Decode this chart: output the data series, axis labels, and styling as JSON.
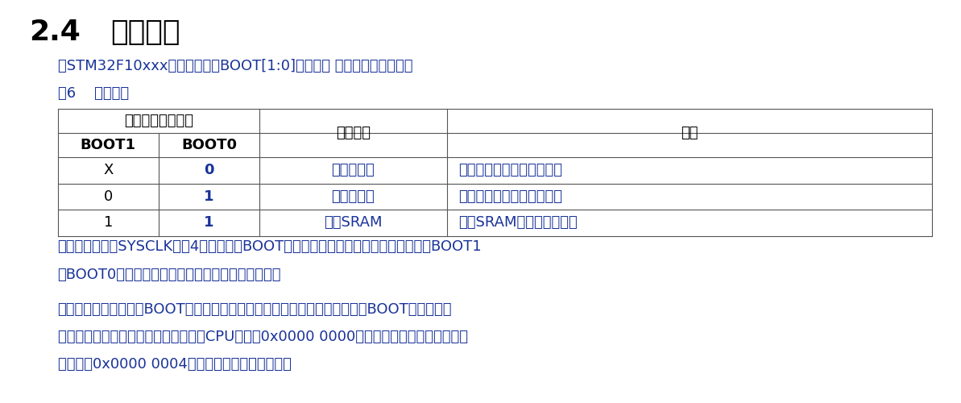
{
  "bg_color": "#ffffff",
  "title_number": "2.4",
  "title_text": "启动配置",
  "title_color": "#000000",
  "title_fontsize": 26,
  "subtitle_color": "#1a3399",
  "subtitle_text": "在STM32F10xxx里，可以通过BOOT[1:0]引脚选择 三种不同启动模式。",
  "table_label": "表6    启动模式",
  "table_label_color": "#1a3399",
  "table_border_color": "#555555",
  "table_header_text_color": "#000000",
  "header1": "启动模式选择引脚",
  "header2": "启动模式",
  "header3": "说明",
  "col1_header": "BOOT1",
  "col2_header": "BOOT0",
  "rows": [
    [
      "X",
      "0",
      "主闪存储器",
      "主闪存储器被选为启动区域"
    ],
    [
      "0",
      "1",
      "系统存储器",
      "系统存储器被选为启动区域"
    ],
    [
      "1",
      "1",
      "内置SRAM",
      "内置SRAM被选为启动区域"
    ]
  ],
  "para1_line1": "在系统复位后，SYSCLK的第4个上升沿，BOOT引脚的值将被锁存。用户可以通过设置BOOT1",
  "para1_line2": "和BOOT0引脚的状态，来选择在复位后的启动模式。",
  "para2_line1": "在从待机模式退出时，BOOT引脚的值将被被重新锁存；因此，在待机模式下BOOT引脚应保持",
  "para2_line2": "为需要的启动配置。在启动延迟之后，CPU从地址0x0000 0000获取堆栈顶的地址，并从启动",
  "para2_line3": "存储器的0x0000 0004指示的地址开始执行代码。",
  "para_color": "#1a3399",
  "para_fontsize": 13,
  "table_fontsize": 13
}
